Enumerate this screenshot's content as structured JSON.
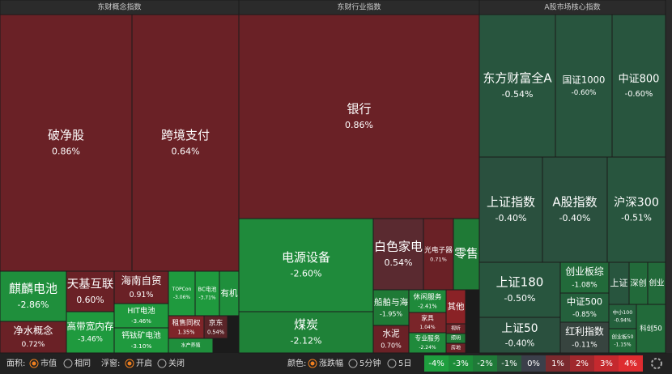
{
  "chart_data": {
    "type": "treemap",
    "groups": [
      {
        "name": "东财概念指数",
        "tiles": [
          {
            "name": "破净股",
            "value": 0.86,
            "value_label": "0.86%",
            "color": "#6a2126"
          },
          {
            "name": "跨境支付",
            "value": 0.64,
            "value_label": "0.64%",
            "color": "#6a2126"
          },
          {
            "name": "麒麟电池",
            "value": -2.86,
            "value_label": "-2.86%",
            "color": "#1f8f3c"
          },
          {
            "name": "净水概念",
            "value": 0.72,
            "value_label": "0.72%",
            "color": "#6a2126"
          },
          {
            "name": "天基互联",
            "value": 0.6,
            "value_label": "0.60%",
            "color": "#6a2126"
          },
          {
            "name": "高带宽内存",
            "value": -3.46,
            "value_label": "-3.46%",
            "color": "#1f9a3e"
          },
          {
            "name": "海南自贸",
            "value": 0.91,
            "value_label": "0.91%",
            "color": "#6a2126"
          },
          {
            "name": "HIT电池",
            "value": -3.46,
            "value_label": "-3.46%",
            "color": "#1f9a3e"
          },
          {
            "name": "钙钛矿电池",
            "value": -3.1,
            "value_label": "-3.10%",
            "color": "#1f9a3e"
          },
          {
            "name": "TOPCon",
            "value": -3.06,
            "value_label": "-3.06%",
            "color": "#1f9a3e"
          },
          {
            "name": "BC电池",
            "value": -3.71,
            "value_label": "-3.71%",
            "color": "#1f9a3e"
          },
          {
            "name": "有机",
            "value": null,
            "color": "#1f8f3c"
          },
          {
            "name": "租售同权",
            "value": 1.35,
            "value_label": "1.35%",
            "color": "#7e2529"
          },
          {
            "name": "京东",
            "value": 0.54,
            "value_label": "0.54%",
            "color": "#5a2428"
          },
          {
            "name": "水产养殖",
            "value": null,
            "color": "#1f8f3c"
          }
        ]
      },
      {
        "name": "东财行业指数",
        "tiles": [
          {
            "name": "银行",
            "value": 0.86,
            "value_label": "0.86%",
            "color": "#6a2126"
          },
          {
            "name": "电源设备",
            "value": -2.6,
            "value_label": "-2.60%",
            "color": "#1f8a3b"
          },
          {
            "name": "煤炭",
            "value": -2.12,
            "value_label": "-2.12%",
            "color": "#1f8238"
          },
          {
            "name": "白色家电",
            "value": 0.54,
            "value_label": "0.54%",
            "color": "#5a2a30"
          },
          {
            "name": "光电子器",
            "value": 0.71,
            "value_label": "0.71%",
            "color": "#6a2126"
          },
          {
            "name": "零售",
            "value": null,
            "color": "#1f7a36"
          },
          {
            "name": "船舶与海",
            "value": -1.95,
            "value_label": "-1.95%",
            "color": "#1f7a36"
          },
          {
            "name": "水泥",
            "value": 0.7,
            "value_label": "0.70%",
            "color": "#6a2126"
          },
          {
            "name": "休闲服务",
            "value": -2.41,
            "value_label": "-2.41%",
            "color": "#1f8a3b"
          },
          {
            "name": "家具",
            "value": 1.04,
            "value_label": "1.04%",
            "color": "#7a2529"
          },
          {
            "name": "专业服务",
            "value": -2.24,
            "value_label": "-2.24%",
            "color": "#1f8a3b"
          },
          {
            "name": "其他",
            "value": null,
            "color": "#8a2226"
          },
          {
            "name": "视听",
            "value": null,
            "color": "#6a2126"
          },
          {
            "name": "照明",
            "value": null,
            "color": "#1f7a36"
          },
          {
            "name": "房地",
            "value": null,
            "color": "#6a2126"
          }
        ]
      },
      {
        "name": "A股市场核心指数",
        "tiles": [
          {
            "name": "东方财富全A",
            "value": -0.54,
            "value_label": "-0.54%",
            "color": "#28553e"
          },
          {
            "name": "国证1000",
            "value": -0.6,
            "value_label": "-0.60%",
            "color": "#28553e"
          },
          {
            "name": "中证800",
            "value": -0.6,
            "value_label": "-0.60%",
            "color": "#28553e"
          },
          {
            "name": "上证指数",
            "value": -0.4,
            "value_label": "-0.40%",
            "color": "#2a503e"
          },
          {
            "name": "A股指数",
            "value": -0.4,
            "value_label": "-0.40%",
            "color": "#2a503e"
          },
          {
            "name": "沪深300",
            "value": -0.51,
            "value_label": "-0.51%",
            "color": "#28553e"
          },
          {
            "name": "上证180",
            "value": -0.5,
            "value_label": "-0.50%",
            "color": "#28553e"
          },
          {
            "name": "上证50",
            "value": -0.4,
            "value_label": "-0.40%",
            "color": "#2a503e"
          },
          {
            "name": "创业板综",
            "value": -1.08,
            "value_label": "-1.08%",
            "color": "#226a3a"
          },
          {
            "name": "中证500",
            "value": -0.85,
            "value_label": "-0.85%",
            "color": "#24603c"
          },
          {
            "name": "红利指数",
            "value": -0.11,
            "value_label": "-0.11%",
            "color": "#37443f"
          },
          {
            "name": "上证",
            "value": null,
            "color": "#28553e"
          },
          {
            "name": "深创",
            "value": null,
            "color": "#226a3a"
          },
          {
            "name": "创业",
            "value": null,
            "color": "#226a3a"
          },
          {
            "name": "中小100",
            "value": -0.94,
            "value_label": "-0.94%",
            "color": "#24603c"
          },
          {
            "name": "创业板50",
            "value": -1.15,
            "value_label": "-1.15%",
            "color": "#226a3a"
          },
          {
            "name": "科创50",
            "value": null,
            "color": "#226a3a"
          }
        ]
      }
    ],
    "legend": [
      {
        "value": -4,
        "label": "-4%",
        "color": "#1e9e3e"
      },
      {
        "value": -3,
        "label": "-3%",
        "color": "#1c8c38"
      },
      {
        "value": -2,
        "label": "-2%",
        "color": "#1f7a38"
      },
      {
        "value": -1,
        "label": "-1%",
        "color": "#2a5a3c"
      },
      {
        "value": 0,
        "label": "0%",
        "color": "#3b3f4a"
      },
      {
        "value": 1,
        "label": "1%",
        "color": "#7a2a2e"
      },
      {
        "value": 2,
        "label": "2%",
        "color": "#a0282d"
      },
      {
        "value": 3,
        "label": "3%",
        "color": "#c4292e"
      },
      {
        "value": 4,
        "label": "4%",
        "color": "#de2c30"
      }
    ]
  },
  "controls": {
    "area_label": "面积:",
    "area_options": [
      "市值",
      "相同"
    ],
    "float_label": "浮窗:",
    "float_options": [
      "开启",
      "关闭"
    ],
    "color_label": "颜色:",
    "color_options": [
      "涨跌幅",
      "5分钟",
      "5日"
    ]
  }
}
